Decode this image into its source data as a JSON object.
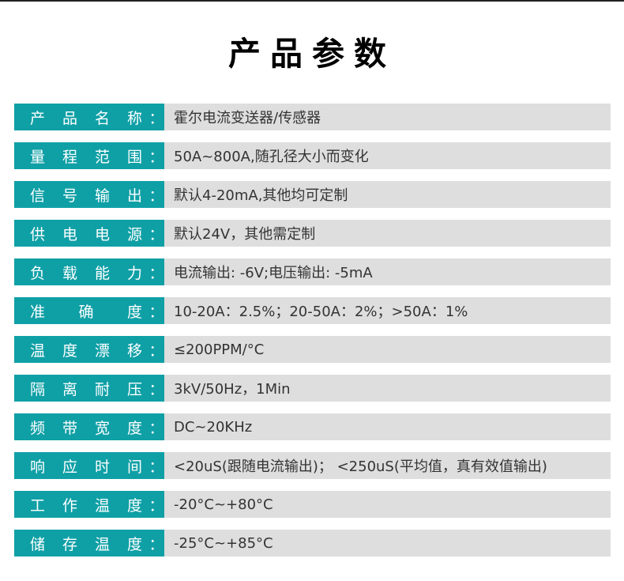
{
  "header": {
    "title": "产品参数"
  },
  "colors": {
    "label_bg": "#0fa0a6",
    "value_bg": "#dedede",
    "label_text": "#ffffff",
    "value_text": "#333333"
  },
  "params": [
    {
      "label": "产品名称",
      "colon": "：",
      "value": "霍尔电流变送器/传感器"
    },
    {
      "label": "量程范围",
      "colon": "：",
      "value": "50A~800A,随孔径大小而变化"
    },
    {
      "label": "信号输出",
      "colon": "：",
      "value": "默认4-20mA,其他均可定制"
    },
    {
      "label": "供电电源",
      "colon": "：",
      "value": "默认24V，其他需定制"
    },
    {
      "label": "负载能力",
      "colon": "：",
      "value": "电流输出: -6V;电压输出: -5mA"
    },
    {
      "label": "准确度",
      "colon": "：",
      "value": "10-20A：2.5%；20-50A：2%；>50A：1%"
    },
    {
      "label": "温度漂移",
      "colon": "：",
      "value": "≤200PPM/°C"
    },
    {
      "label": "隔离耐压",
      "colon": "：",
      "value": "3kV/50Hz，1Min"
    },
    {
      "label": "频带宽度",
      "colon": "：",
      "value": "DC~20KHz"
    },
    {
      "label": "响应时间",
      "colon": "：",
      "value": "<20uS(跟随电流输出)； <250uS(平均值，真有效值输出)"
    },
    {
      "label": "工作温度",
      "colon": "：",
      "value": "-20°C~+80°C"
    },
    {
      "label": "储存温度",
      "colon": "：",
      "value": "-25°C~+85°C"
    }
  ]
}
